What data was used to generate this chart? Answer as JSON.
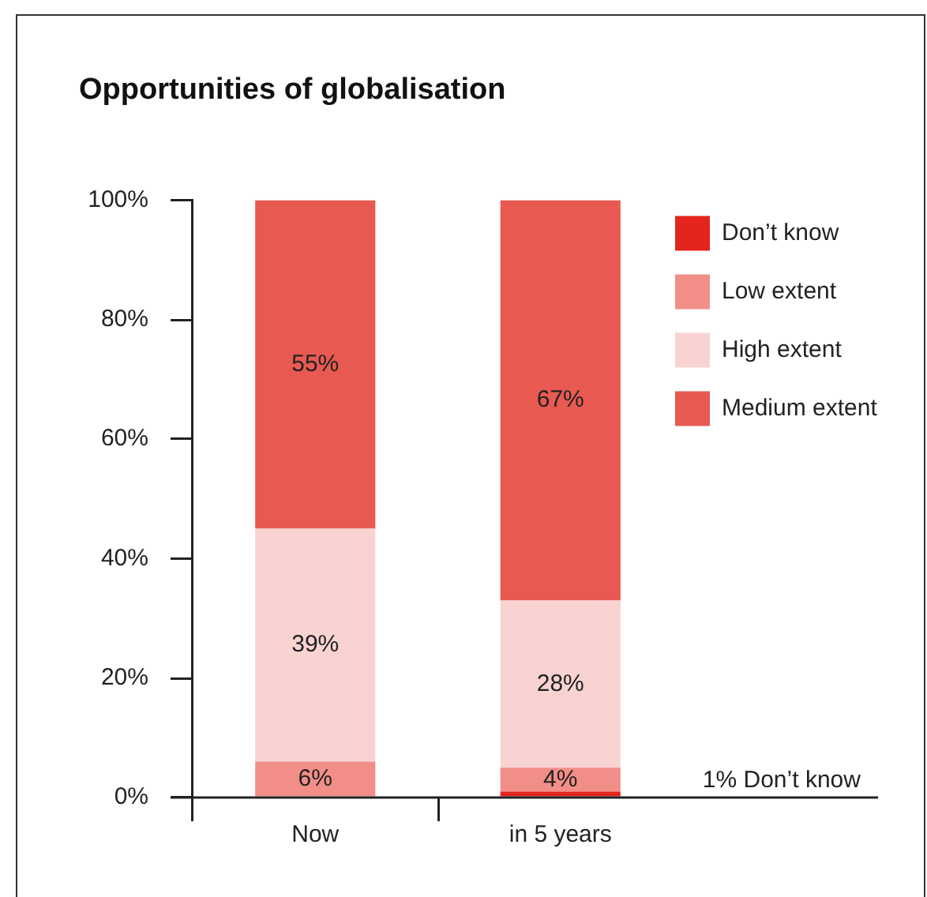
{
  "chart_data": {
    "type": "bar",
    "title": "Opportunities of globalisation",
    "categories": [
      "Now",
      "in 5 years"
    ],
    "stacked": true,
    "series": [
      {
        "name": "Don’t know",
        "color": "#e3251d",
        "values": [
          0,
          1
        ]
      },
      {
        "name": "Low extent",
        "color": "#f28e88",
        "values": [
          6,
          4
        ],
        "value_labels": [
          "6%",
          "4%"
        ]
      },
      {
        "name": "High extent",
        "color": "#f8d3d2",
        "values": [
          39,
          28
        ],
        "value_labels": [
          "39%",
          "28%"
        ]
      },
      {
        "name": "Medium extent",
        "color": "#e85a51",
        "values": [
          55,
          67
        ],
        "value_labels": [
          "55%",
          "67%"
        ]
      }
    ],
    "ylim": [
      0,
      100
    ],
    "yticks": [
      {
        "value": 0,
        "label": "0%"
      },
      {
        "value": 20,
        "label": "20%"
      },
      {
        "value": 40,
        "label": "40%"
      },
      {
        "value": 60,
        "label": "60%"
      },
      {
        "value": 80,
        "label": "80%"
      },
      {
        "value": 100,
        "label": "100%"
      }
    ],
    "annotations": [
      "1% Don’t know"
    ],
    "grid": false,
    "legend": "top right"
  }
}
